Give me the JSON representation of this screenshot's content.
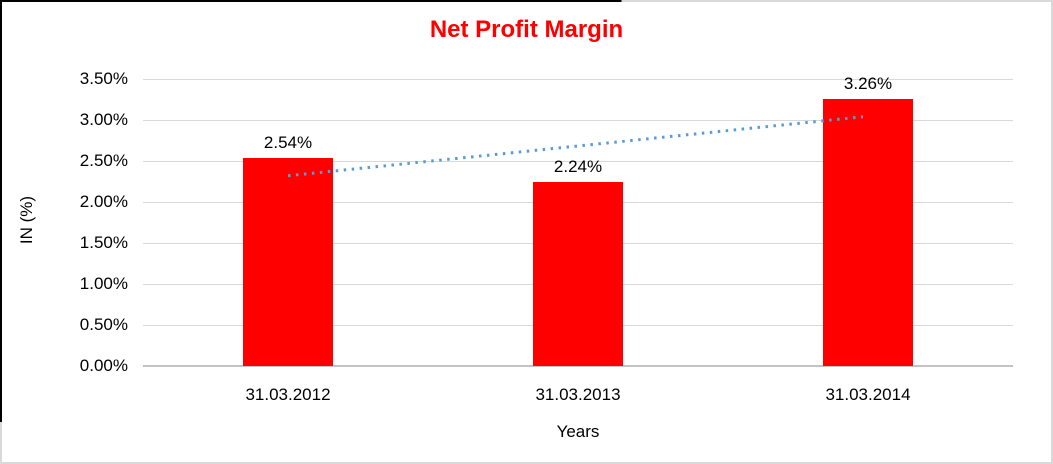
{
  "chart_data": {
    "type": "bar",
    "title": "Net Profit Margin",
    "title_color": "#ff0000",
    "categories": [
      "31.03.2012",
      "31.03.2013",
      "31.03.2014"
    ],
    "values": [
      2.54,
      2.24,
      3.26
    ],
    "data_labels": [
      "2.54%",
      "2.24%",
      "3.26%"
    ],
    "bar_color": "#ff0000",
    "xlabel": "Years",
    "ylabel": "IN (%)",
    "ylim": [
      0,
      3.5
    ],
    "ytick_step": 0.5,
    "ytick_labels": [
      "0.00%",
      "0.50%",
      "1.00%",
      "1.50%",
      "2.00%",
      "2.50%",
      "3.00%",
      "3.50%"
    ],
    "grid": true,
    "gridline_color": "#d9d9d9",
    "legend": "none",
    "trendline": {
      "style": "dotted",
      "color": "#5b9bd5",
      "start_value": 2.32,
      "end_value": 3.04
    }
  }
}
